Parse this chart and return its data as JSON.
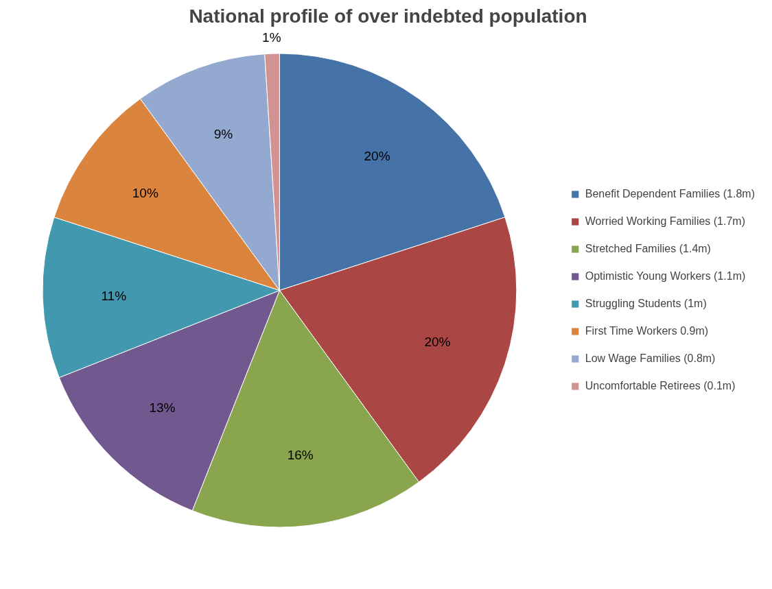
{
  "chart_data": {
    "type": "pie",
    "title": "National profile of over indebted population",
    "categories": [
      "Benefit Dependent Families (1.8m)",
      "Worried Working Families (1.7m)",
      "Stretched Families (1.4m)",
      "Optimistic Young Workers (1.1m)",
      "Struggling Students (1m)",
      "First Time Workers 0.9m)",
      "Low Wage Families (0.8m)",
      "Uncomfortable Retirees (0.1m)"
    ],
    "values": [
      20,
      20,
      16,
      13,
      11,
      10,
      9,
      1
    ],
    "value_labels": [
      "20%",
      "20%",
      "16%",
      "13%",
      "11%",
      "10%",
      "9%",
      "1%"
    ],
    "colors": [
      "#4572a7",
      "#aa4643",
      "#89a54e",
      "#71588f",
      "#4198af",
      "#db843d",
      "#93a9cf",
      "#d19392"
    ],
    "legend": "right"
  }
}
